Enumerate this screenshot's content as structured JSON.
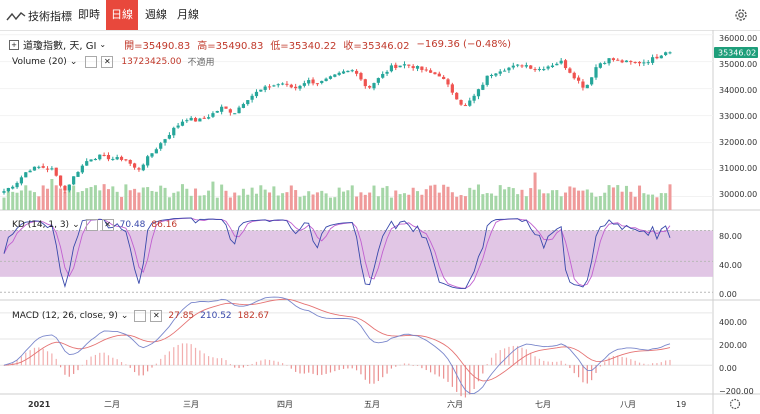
{
  "toolbar": {
    "tool_label": "技術指標",
    "tabs": [
      {
        "label": "即時",
        "active": false
      },
      {
        "label": "日線",
        "active": true
      },
      {
        "label": "週線",
        "active": false
      },
      {
        "label": "月線",
        "active": false
      }
    ],
    "settings_icon": "gear-icon",
    "accent_color": "#e8483c"
  },
  "legend": {
    "main": {
      "title": "道瓊指數, 天, GI",
      "open": "開=35490.83",
      "high": "高=35490.83",
      "low": "低=35340.22",
      "close": "收=35346.02",
      "change": "−169.36 (−0.48%)"
    },
    "volume": {
      "label": "Volume (20)",
      "value": "13723425.00",
      "value2": "不適用"
    },
    "kd": {
      "label": "KD (14, 1, 3)",
      "k": "70.48",
      "d": "86.16"
    },
    "macd": {
      "label": "MACD (12, 26, close, 9)",
      "v1": "27.85",
      "v2": "210.52",
      "v3": "182.67"
    }
  },
  "price_axis": {
    "ticks": [
      "36000.00",
      "35000.00",
      "34000.00",
      "33000.00",
      "32000.00",
      "31000.00",
      "30000.00"
    ],
    "last_price": "35346.02"
  },
  "kd_axis": {
    "ticks": [
      "80.00",
      "40.00",
      "0.00"
    ]
  },
  "macd_axis": {
    "ticks": [
      "400.00",
      "200.00",
      "0.00",
      "−200.00"
    ]
  },
  "time_axis": {
    "labels": [
      "2021",
      "二月",
      "三月",
      "四月",
      "五月",
      "六月",
      "七月",
      "八月",
      "19"
    ]
  },
  "colors": {
    "up": "#26a69a",
    "down": "#ef5350",
    "up_vol": "#a5d6a7",
    "down_vol": "#ef9a9a",
    "kd_band": "#dcbce0",
    "k_line": "#3949ab",
    "d_line": "#c060d0",
    "macd_line": "#7986cb",
    "signal_line": "#e57373",
    "last_price_bg": "#1e9e7a"
  },
  "chart_data": [
    {
      "type": "candlestick",
      "title": "道瓊指數, 天, GI",
      "x_labels": [
        "2021",
        "二月",
        "三月",
        "四月",
        "五月",
        "六月",
        "七月",
        "八月",
        "19"
      ],
      "ylim": [
        29500,
        36100
      ],
      "anchor_closes": [
        30200,
        30500,
        31000,
        31100,
        31000,
        30200,
        30900,
        31400,
        31500,
        31400,
        31400,
        30950,
        31500,
        32000,
        32500,
        32900,
        32800,
        33000,
        33300,
        33100,
        33600,
        33900,
        34100,
        34200,
        34000,
        34300,
        34200,
        34400,
        34600,
        34700,
        34000,
        34400,
        34800,
        34900,
        34800,
        34600,
        34500,
        33900,
        33300,
        33800,
        34500,
        34700,
        34800,
        34900,
        34700,
        34850,
        35000,
        34500,
        34000,
        34900,
        35100,
        35000,
        34950,
        35000,
        35200,
        35500
      ],
      "last_close": 35346.02
    },
    {
      "type": "bar",
      "title": "Volume (20)",
      "note": "daily volume bars colored by candle direction"
    },
    {
      "type": "line",
      "title": "KD (14, 1, 3)",
      "series": [
        {
          "name": "K",
          "last": 70.48
        },
        {
          "name": "D",
          "last": 86.16
        }
      ],
      "band": [
        20,
        80
      ],
      "ylim": [
        -10,
        100
      ]
    },
    {
      "type": "line",
      "title": "MACD (12, 26, close, 9)",
      "series": [
        {
          "name": "MACD",
          "last": 210.52
        },
        {
          "name": "Signal",
          "last": 182.67
        },
        {
          "name": "Histogram",
          "last": 27.85
        }
      ],
      "ylim": [
        -220,
        460
      ]
    }
  ]
}
